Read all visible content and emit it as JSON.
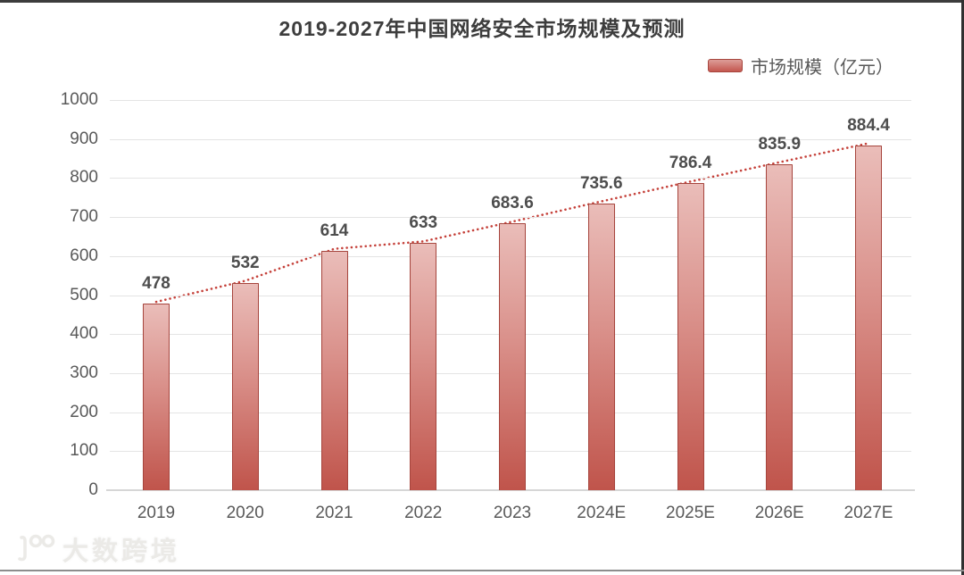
{
  "chart": {
    "title": "2019-2027年中国网络安全市场规模及预测",
    "legend": "市场规模（亿元）"
  },
  "watermark": {
    "text": "大数跨境"
  },
  "chart_data": {
    "type": "bar",
    "title": "2019-2027年中国网络安全市场规模及预测",
    "legend": [
      "市场规模（亿元）"
    ],
    "legend_position": "top-right",
    "categories": [
      "2019",
      "2020",
      "2021",
      "2022",
      "2023",
      "2024E",
      "2025E",
      "2026E",
      "2027E"
    ],
    "values": [
      478,
      532,
      614,
      633,
      683.6,
      735.6,
      786.4,
      835.9,
      884.4
    ],
    "value_labels": [
      "478",
      "532",
      "614",
      "633",
      "683.6",
      "735.6",
      "786.4",
      "835.9",
      "884.4"
    ],
    "xlabel": "",
    "ylabel": "",
    "ylim": [
      0,
      1000
    ],
    "y_ticks": [
      0,
      100,
      200,
      300,
      400,
      500,
      600,
      700,
      800,
      900,
      1000
    ],
    "grid": true,
    "annotations": "dotted red trend line running across the bar tops",
    "colors": {
      "bar_gradient_top": "#eabdb9",
      "bar_gradient_bottom": "#c0544b",
      "bar_border": "#a6453d",
      "trend_line": "#c5413a",
      "title_text": "#3d3d3d",
      "axis_text": "#595959",
      "value_text": "#4d4d4d",
      "gridline": "#e4e4e4"
    }
  }
}
